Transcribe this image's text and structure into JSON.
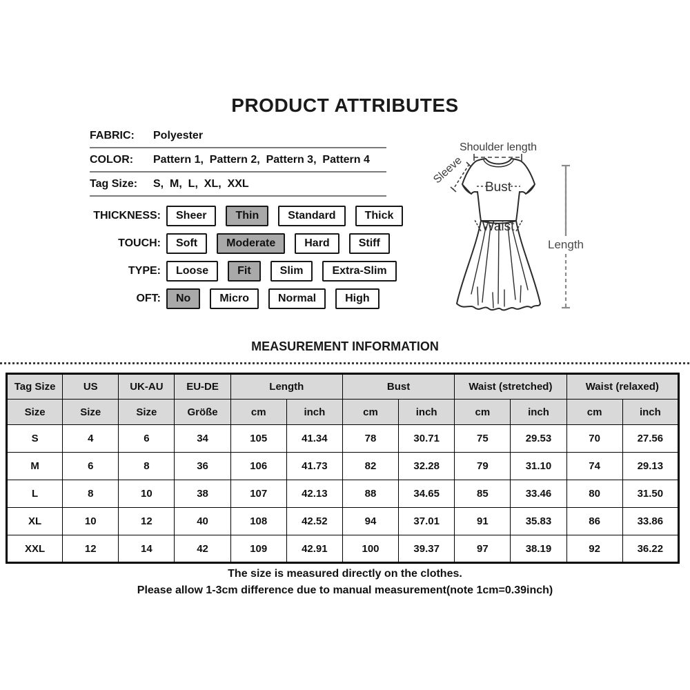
{
  "title": "PRODUCT ATTRIBUTES",
  "attributes": [
    {
      "label": "FABRIC:",
      "value": "Polyester"
    },
    {
      "label": "COLOR:",
      "value": "Pattern 1,  Pattern 2,  Pattern 3,  Pattern 4"
    },
    {
      "label": "Tag Size:",
      "value": "S,  M,  L,  XL,  XXL"
    }
  ],
  "options": [
    {
      "label": "THICKNESS:",
      "choices": [
        {
          "text": "Sheer",
          "selected": false
        },
        {
          "text": "Thin",
          "selected": true
        },
        {
          "text": "Standard",
          "selected": false
        },
        {
          "text": "Thick",
          "selected": false
        }
      ]
    },
    {
      "label": "TOUCH:",
      "choices": [
        {
          "text": "Soft",
          "selected": false
        },
        {
          "text": "Moderate",
          "selected": true
        },
        {
          "text": "Hard",
          "selected": false
        },
        {
          "text": "Stiff",
          "selected": false
        }
      ]
    },
    {
      "label": "TYPE:",
      "choices": [
        {
          "text": "Loose",
          "selected": false
        },
        {
          "text": "Fit",
          "selected": true
        },
        {
          "text": "Slim",
          "selected": false
        },
        {
          "text": "Extra-Slim",
          "selected": false
        }
      ]
    },
    {
      "label": "OFT:",
      "choices": [
        {
          "text": "No",
          "selected": true
        },
        {
          "text": "Micro",
          "selected": false
        },
        {
          "text": "Normal",
          "selected": false
        },
        {
          "text": "High",
          "selected": false
        }
      ]
    }
  ],
  "diagram": {
    "labels": {
      "shoulder": "Shoulder length",
      "sleeve": "Sleeve",
      "bust": "Bust",
      "waist": "Waist",
      "length": "Length"
    }
  },
  "measurement": {
    "title": "MEASUREMENT INFORMATION",
    "header_groups": [
      {
        "label": "Tag Size",
        "span": 1
      },
      {
        "label": "US",
        "span": 1
      },
      {
        "label": "UK-AU",
        "span": 1
      },
      {
        "label": "EU-DE",
        "span": 1
      },
      {
        "label": "Length",
        "span": 2
      },
      {
        "label": "Bust",
        "span": 2
      },
      {
        "label": "Waist  (stretched)",
        "span": 2
      },
      {
        "label": "Waist  (relaxed)",
        "span": 2
      }
    ],
    "subheader": [
      "Size",
      "Size",
      "Size",
      "Größe",
      "cm",
      "inch",
      "cm",
      "inch",
      "cm",
      "inch",
      "cm",
      "inch"
    ],
    "rows": [
      [
        "S",
        "4",
        "6",
        "34",
        "105",
        "41.34",
        "78",
        "30.71",
        "75",
        "29.53",
        "70",
        "27.56"
      ],
      [
        "M",
        "6",
        "8",
        "36",
        "106",
        "41.73",
        "82",
        "32.28",
        "79",
        "31.10",
        "74",
        "29.13"
      ],
      [
        "L",
        "8",
        "10",
        "38",
        "107",
        "42.13",
        "88",
        "34.65",
        "85",
        "33.46",
        "80",
        "31.50"
      ],
      [
        "XL",
        "10",
        "12",
        "40",
        "108",
        "42.52",
        "94",
        "37.01",
        "91",
        "35.83",
        "86",
        "33.86"
      ],
      [
        "XXL",
        "12",
        "14",
        "42",
        "109",
        "42.91",
        "100",
        "39.37",
        "97",
        "38.19",
        "92",
        "36.22"
      ]
    ]
  },
  "footer": {
    "line1": "The size is measured directly on the clothes.",
    "line2": "Please allow 1-3cm difference due to manual measurement(note 1cm=0.39inch)"
  },
  "colors": {
    "selected_chip": "#a9a9a9",
    "table_header_bg": "#d9d9d9",
    "border": "#000000",
    "diagram_line": "#8a8a8a"
  }
}
